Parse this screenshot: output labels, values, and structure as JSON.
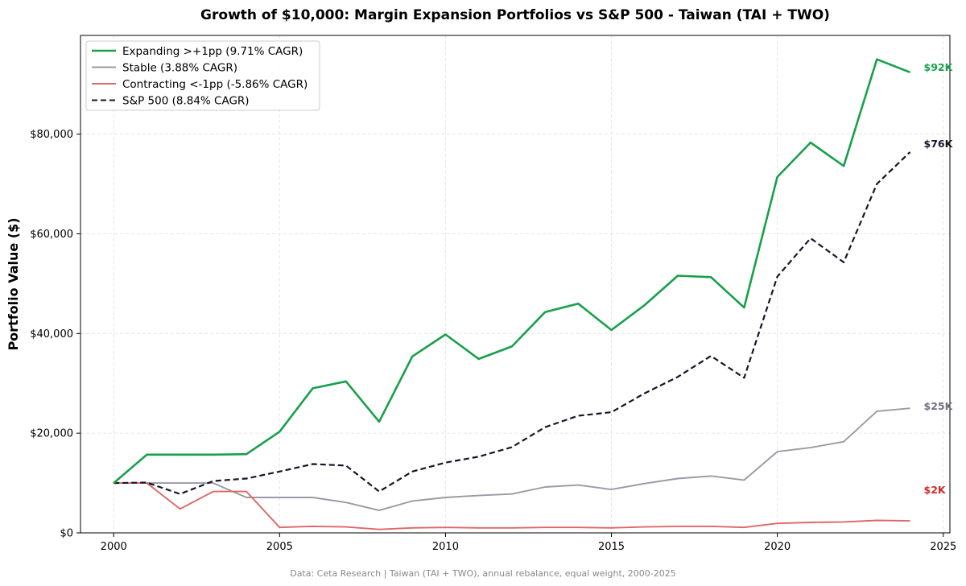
{
  "chart_data": {
    "type": "line",
    "title": "Growth of $10,000: Margin Expansion Portfolios vs S&P 500 - Taiwan (TAI + TWO)",
    "xlabel": "",
    "ylabel": "Portfolio Value ($)",
    "xlim": [
      1999,
      2025.2
    ],
    "ylim": [
      0,
      99800
    ],
    "x_ticks": [
      2000,
      2005,
      2010,
      2015,
      2020,
      2025
    ],
    "x_tick_labels": [
      "2000",
      "2005",
      "2010",
      "2015",
      "2020",
      "2025"
    ],
    "y_ticks": [
      0,
      20000,
      40000,
      60000,
      80000
    ],
    "y_tick_labels": [
      "$0",
      "$20,000",
      "$40,000",
      "$60,000",
      "$80,000"
    ],
    "grid": true,
    "legend_position": "top-left",
    "x": [
      2000,
      2001,
      2002,
      2003,
      2004,
      2005,
      2006,
      2007,
      2008,
      2009,
      2010,
      2011,
      2012,
      2013,
      2014,
      2015,
      2016,
      2017,
      2018,
      2019,
      2020,
      2021,
      2022,
      2023,
      2024
    ],
    "series": [
      {
        "name": "Expanding >+1pp (9.71% CAGR)",
        "color": "#17a04a",
        "dash": "solid",
        "end_label": "$92K",
        "values": [
          10000,
          15700,
          15700,
          15700,
          15800,
          20300,
          29000,
          30400,
          22300,
          35400,
          39800,
          34900,
          37400,
          44300,
          46000,
          40700,
          45700,
          51600,
          51300,
          45200,
          71400,
          78300,
          73600,
          95000,
          92400
        ]
      },
      {
        "name": "Stable (3.88% CAGR)",
        "color": "#9a9aa6",
        "dash": "solid",
        "end_label": "$25K",
        "values": [
          10000,
          10000,
          10000,
          10000,
          7100,
          7100,
          7100,
          6100,
          4500,
          6400,
          7100,
          7500,
          7800,
          9200,
          9600,
          8700,
          9900,
          10900,
          11400,
          10600,
          16300,
          17100,
          18300,
          24400,
          25000
        ]
      },
      {
        "name": "Contracting <-1pp (-5.86% CAGR)",
        "color": "#e06666",
        "dash": "solid",
        "end_label": "$2K",
        "values": [
          10000,
          10000,
          4800,
          8300,
          8300,
          1100,
          1300,
          1200,
          700,
          1000,
          1100,
          1000,
          1000,
          1100,
          1100,
          1000,
          1200,
          1300,
          1300,
          1100,
          1900,
          2100,
          2200,
          2500,
          2400
        ]
      },
      {
        "name": "S&P 500 (8.84% CAGR)",
        "color": "#161628",
        "dash": "dashed",
        "end_label": "$76K",
        "values": [
          10000,
          10100,
          7800,
          10400,
          10900,
          12300,
          13800,
          13500,
          8300,
          12300,
          14100,
          15300,
          17200,
          21200,
          23500,
          24200,
          28000,
          31300,
          35500,
          31100,
          51400,
          59100,
          54300,
          70000,
          76400
        ]
      }
    ],
    "footer": "Data: Ceta Research | Taiwan (TAI + TWO), annual rebalance, equal weight, 2000-2025"
  }
}
